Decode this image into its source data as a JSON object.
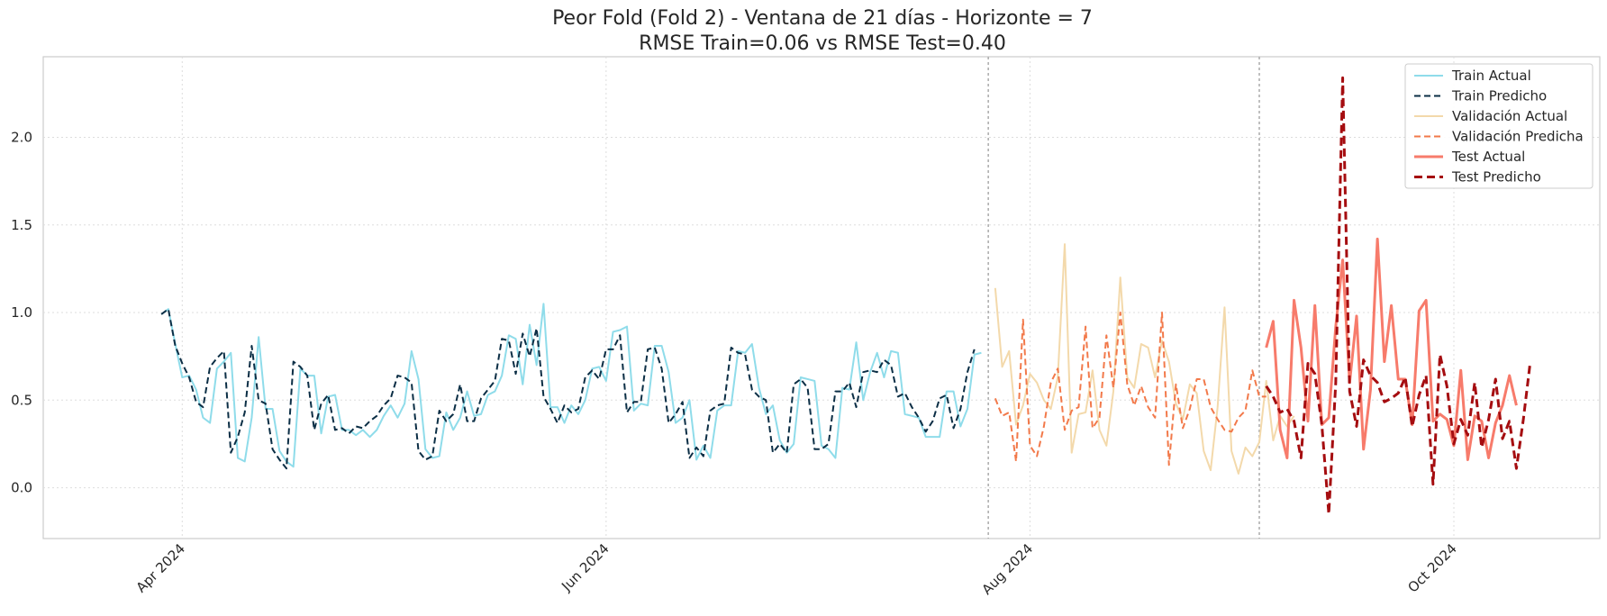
{
  "chart_data": {
    "type": "line",
    "title": "Peor Fold (Fold 2) - Ventana de 21 días - Horizonte = 7",
    "subtitle": "RMSE Train=0.06 vs RMSE Test=0.40",
    "xlabel": "",
    "ylabel": "",
    "x_ticks": [
      {
        "date": "2024-04-01",
        "label": "Apr 2024"
      },
      {
        "date": "2024-06-01",
        "label": "Jun 2024"
      },
      {
        "date": "2024-08-01",
        "label": "Aug 2024"
      },
      {
        "date": "2024-10-01",
        "label": "Oct 2024"
      }
    ],
    "xlim": [
      "2024-03-12",
      "2024-10-22"
    ],
    "y_ticks": [
      0.0,
      0.5,
      1.0,
      1.5,
      2.0
    ],
    "ylim": [
      -0.29,
      2.46
    ],
    "grid": true,
    "legend_position": "top-right",
    "split_lines": [
      "2024-07-26",
      "2024-09-03"
    ],
    "series": [
      {
        "name": "Train Actual",
        "color": "#8fdcea",
        "dash": "solid",
        "width": 2,
        "start": "2024-03-29",
        "values": [
          0.99,
          1.02,
          0.82,
          0.63,
          0.64,
          0.56,
          0.4,
          0.37,
          0.68,
          0.72,
          0.77,
          0.17,
          0.15,
          0.4,
          0.86,
          0.45,
          0.45,
          0.21,
          0.15,
          0.12,
          0.68,
          0.64,
          0.64,
          0.31,
          0.52,
          0.53,
          0.33,
          0.33,
          0.3,
          0.33,
          0.29,
          0.33,
          0.41,
          0.47,
          0.4,
          0.48,
          0.78,
          0.62,
          0.22,
          0.17,
          0.18,
          0.43,
          0.33,
          0.4,
          0.55,
          0.41,
          0.42,
          0.53,
          0.55,
          0.64,
          0.87,
          0.85,
          0.59,
          0.93,
          0.7,
          1.05,
          0.46,
          0.46,
          0.37,
          0.47,
          0.42,
          0.5,
          0.68,
          0.69,
          0.61,
          0.89,
          0.9,
          0.92,
          0.44,
          0.48,
          0.47,
          0.81,
          0.81,
          0.66,
          0.37,
          0.4,
          0.5,
          0.16,
          0.24,
          0.17,
          0.44,
          0.47,
          0.47,
          0.78,
          0.77,
          0.82,
          0.57,
          0.42,
          0.47,
          0.27,
          0.2,
          0.25,
          0.63,
          0.62,
          0.61,
          0.24,
          0.22,
          0.17,
          0.57,
          0.56,
          0.83,
          0.5,
          0.66,
          0.77,
          0.63,
          0.78,
          0.77,
          0.42,
          0.41,
          0.4,
          0.29,
          0.29,
          0.29,
          0.55,
          0.55,
          0.35,
          0.45,
          0.76,
          0.77
        ]
      },
      {
        "name": "Train Predicho",
        "color": "#0b2e45",
        "dash": "dashed",
        "width": 2,
        "start": "2024-03-29",
        "values": [
          0.99,
          1.02,
          0.81,
          0.71,
          0.63,
          0.49,
          0.46,
          0.69,
          0.74,
          0.78,
          0.2,
          0.29,
          0.43,
          0.81,
          0.5,
          0.48,
          0.22,
          0.16,
          0.11,
          0.72,
          0.69,
          0.64,
          0.33,
          0.48,
          0.53,
          0.33,
          0.34,
          0.31,
          0.35,
          0.34,
          0.38,
          0.41,
          0.47,
          0.51,
          0.64,
          0.63,
          0.6,
          0.21,
          0.16,
          0.18,
          0.44,
          0.38,
          0.42,
          0.59,
          0.38,
          0.38,
          0.51,
          0.56,
          0.61,
          0.85,
          0.84,
          0.65,
          0.88,
          0.75,
          0.91,
          0.52,
          0.45,
          0.37,
          0.47,
          0.43,
          0.45,
          0.63,
          0.67,
          0.62,
          0.79,
          0.79,
          0.87,
          0.43,
          0.49,
          0.49,
          0.79,
          0.8,
          0.68,
          0.37,
          0.42,
          0.49,
          0.17,
          0.23,
          0.18,
          0.44,
          0.47,
          0.48,
          0.8,
          0.77,
          0.76,
          0.56,
          0.52,
          0.5,
          0.2,
          0.25,
          0.2,
          0.59,
          0.62,
          0.57,
          0.22,
          0.22,
          0.25,
          0.55,
          0.55,
          0.6,
          0.46,
          0.66,
          0.67,
          0.66,
          0.73,
          0.7,
          0.52,
          0.54,
          0.46,
          0.4,
          0.32,
          0.38,
          0.51,
          0.53,
          0.34,
          0.45,
          0.66,
          0.79
        ]
      },
      {
        "name": "Validación Actual",
        "color": "#f3d9ab",
        "dash": "solid",
        "width": 2,
        "start": "2024-07-27",
        "values": [
          1.14,
          0.69,
          0.78,
          0.36,
          0.47,
          0.65,
          0.6,
          0.5,
          0.45,
          0.63,
          1.39,
          0.2,
          0.42,
          0.43,
          0.67,
          0.33,
          0.24,
          0.55,
          1.2,
          0.63,
          0.57,
          0.82,
          0.8,
          0.63,
          0.84,
          0.72,
          0.48,
          0.39,
          0.59,
          0.54,
          0.21,
          0.1,
          0.46,
          1.03,
          0.21,
          0.08,
          0.23,
          0.18,
          0.26,
          0.61,
          0.27,
          0.41,
          0.35,
          0.41
        ]
      },
      {
        "name": "Validación Predicha",
        "color": "#f2794a",
        "dash": "dashed",
        "width": 2,
        "start": "2024-07-27",
        "values": [
          0.51,
          0.41,
          0.43,
          0.15,
          0.96,
          0.24,
          0.18,
          0.35,
          0.6,
          0.68,
          0.33,
          0.44,
          0.46,
          0.92,
          0.34,
          0.4,
          0.87,
          0.57,
          1.0,
          0.59,
          0.47,
          0.58,
          0.46,
          0.4,
          1.0,
          0.13,
          0.59,
          0.34,
          0.45,
          0.62,
          0.62,
          0.46,
          0.39,
          0.33,
          0.32,
          0.4,
          0.44,
          0.67,
          0.52,
          0.52
        ]
      },
      {
        "name": "Test Actual",
        "color": "#f77b6b",
        "dash": "solid",
        "width": 3,
        "start": "2024-09-04",
        "values": [
          0.8,
          0.95,
          0.33,
          0.17,
          1.07,
          0.8,
          0.38,
          1.04,
          0.36,
          0.4,
          0.92,
          1.3,
          0.6,
          0.98,
          0.22,
          0.56,
          1.42,
          0.72,
          1.04,
          0.62,
          0.62,
          0.36,
          1.01,
          1.07,
          0.38,
          0.42,
          0.39,
          0.24,
          0.67,
          0.16,
          0.41,
          0.38,
          0.17,
          0.37,
          0.47,
          0.64,
          0.47
        ]
      },
      {
        "name": "Test Predicho",
        "color": "#a50d10",
        "dash": "dashed",
        "width": 3,
        "start": "2024-09-04",
        "values": [
          0.58,
          0.52,
          0.43,
          0.45,
          0.38,
          0.17,
          0.71,
          0.65,
          0.36,
          -0.15,
          0.6,
          2.34,
          0.55,
          0.35,
          0.73,
          0.64,
          0.6,
          0.49,
          0.51,
          0.54,
          0.63,
          0.35,
          0.53,
          0.64,
          0.02,
          0.76,
          0.58,
          0.25,
          0.39,
          0.3,
          0.6,
          0.23,
          0.39,
          0.62,
          0.28,
          0.38,
          0.11,
          0.39,
          0.72
        ]
      }
    ]
  }
}
